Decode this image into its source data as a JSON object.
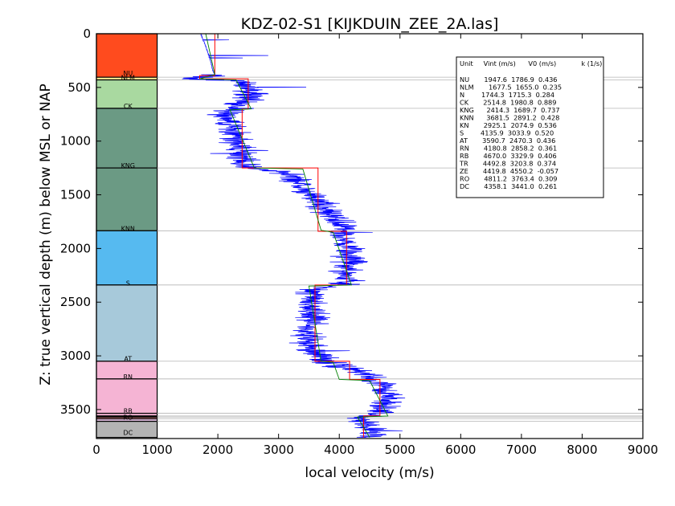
{
  "chart_data": {
    "type": "line",
    "title": "KDZ-02-S1 [KIJKDUIN_ZEE_2A.las]",
    "xlabel": "local velocity (m/s)",
    "ylabel": "Z: true vertical depth (m) below MSL or NAP",
    "xlim": [
      0,
      9000
    ],
    "ylim": [
      3770,
      0
    ],
    "xticks": [
      0,
      1000,
      2000,
      3000,
      4000,
      5000,
      6000,
      7000,
      8000,
      9000
    ],
    "yticks": [
      0,
      500,
      1000,
      1500,
      2000,
      2500,
      3000,
      3500
    ],
    "colors": {
      "log": "#0000ff",
      "interval": "#ff0000",
      "trend": "#008000",
      "boundary": "#b4b4b4",
      "frame": "#000000"
    },
    "units": [
      {
        "code": "NU",
        "top": 0,
        "bottom": 405,
        "color": "#ff4b1e"
      },
      {
        "code": "NLM",
        "top": 405,
        "bottom": 430,
        "color": "#fff59a"
      },
      {
        "code": "N",
        "top": 430,
        "bottom": 695,
        "color": "#a9d9a0"
      },
      {
        "code": "CK",
        "top": 695,
        "bottom": 1250,
        "color": "#6b9a84"
      },
      {
        "code": "KNG",
        "top": 1250,
        "bottom": 1835,
        "color": "#6b9a84"
      },
      {
        "code": "KNN",
        "top": 1835,
        "bottom": 2340,
        "color": "#56baf0"
      },
      {
        "code": "S",
        "top": 2340,
        "bottom": 3050,
        "color": "#a7c9da"
      },
      {
        "code": "AT",
        "top": 3050,
        "bottom": 3215,
        "color": "#f5b4d4"
      },
      {
        "code": "RN",
        "top": 3215,
        "bottom": 3535,
        "color": "#f5b4d4"
      },
      {
        "code": "RB",
        "top": 3535,
        "bottom": 3560,
        "color": "#f5b4d4"
      },
      {
        "code": "TR",
        "top": 3560,
        "bottom": 3570,
        "color": "#f5c48c"
      },
      {
        "code": "ZE",
        "top": 3570,
        "bottom": 3585,
        "color": "#ff9b9b"
      },
      {
        "code": "RO",
        "top": 3585,
        "bottom": 3610,
        "color": "#d0b0d0"
      },
      {
        "code": "DC",
        "top": 3610,
        "bottom": 3760,
        "color": "#b4b4b4"
      }
    ],
    "unit_labels": [
      {
        "code": "NU",
        "depth": 375
      },
      {
        "code": "NLM",
        "depth": 415
      },
      {
        "code": "CK",
        "depth": 680
      },
      {
        "code": "KNG",
        "depth": 1235
      },
      {
        "code": "KNN",
        "depth": 1820
      },
      {
        "code": "S",
        "depth": 2330
      },
      {
        "code": "AT",
        "depth": 3035
      },
      {
        "code": "RN",
        "depth": 3200
      },
      {
        "code": "RB",
        "depth": 3520
      },
      {
        "code": "RO",
        "depth": 3580
      },
      {
        "code": "DC",
        "depth": 3720
      }
    ],
    "legend": {
      "position": "top-right",
      "header": "Unit     Vint (m/s)      V0 (m/s)            k (1/s)",
      "rows": [
        "NU       1947.6  1786.9  0.436",
        "NLM       1677.5  1655.0  0.235",
        "N        1744.3  1715.3  0.284",
        "CK       2514.8  1980.8  0.889",
        "KNG      2414.3  1689.7  0.737",
        "KNN      3681.5  2891.2  0.428",
        "KN       2925.1  2074.9  0.536",
        "S        4135.9  3033.9  0.520",
        "AT       3590.7  2470.3  0.436",
        "RN       4180.8  2858.2  0.361",
        "RB       4670.0  3329.9  0.406",
        "TR       4492.8  3203.8  0.374",
        "ZE       4419.8  4550.2  -0.057",
        "RO       4811.2  3763.4  0.309",
        "DC       4358.1  3441.0  0.261"
      ]
    },
    "series": [
      {
        "values": [
          [
            1950,
            0
          ],
          [
            1950,
            390
          ],
          [
            1700,
            390
          ],
          [
            1700,
            420
          ],
          [
            2500,
            420
          ],
          [
            2500,
            700
          ],
          [
            2400,
            700
          ],
          [
            2400,
            1250
          ],
          [
            3650,
            1250
          ],
          [
            3650,
            1840
          ],
          [
            4120,
            1840
          ],
          [
            4120,
            2340
          ],
          [
            3600,
            2340
          ],
          [
            3600,
            3050
          ],
          [
            4170,
            3050
          ],
          [
            4170,
            3220
          ],
          [
            4670,
            3220
          ],
          [
            4670,
            3560
          ],
          [
            4400,
            3560
          ],
          [
            4400,
            3760
          ]
        ]
      },
      {
        "values": [
          [
            1800,
            0
          ],
          [
            1950,
            380
          ],
          [
            1700,
            420
          ],
          [
            2300,
            430
          ],
          [
            2550,
            700
          ],
          [
            2200,
            710
          ],
          [
            2600,
            1250
          ],
          [
            3400,
            1260
          ],
          [
            3700,
            1830
          ],
          [
            3900,
            1850
          ],
          [
            4200,
            2340
          ],
          [
            3500,
            2350
          ],
          [
            3700,
            3050
          ],
          [
            3900,
            3060
          ],
          [
            4000,
            3220
          ],
          [
            4500,
            3230
          ],
          [
            4800,
            3560
          ],
          [
            4300,
            3570
          ],
          [
            4500,
            3760
          ]
        ]
      },
      {
        "profile": [
          [
            0,
            1720
          ],
          [
            50,
            1750
          ],
          [
            100,
            1790
          ],
          [
            150,
            1820
          ],
          [
            200,
            1850
          ],
          [
            250,
            1880
          ],
          [
            300,
            1900
          ],
          [
            350,
            1920
          ],
          [
            380,
            1950
          ],
          [
            395,
            1840
          ],
          [
            405,
            1700
          ],
          [
            415,
            1450
          ],
          [
            425,
            1800
          ],
          [
            440,
            2380
          ],
          [
            480,
            2450
          ],
          [
            520,
            2500
          ],
          [
            560,
            2520
          ],
          [
            600,
            2480
          ],
          [
            650,
            2400
          ],
          [
            690,
            2300
          ],
          [
            720,
            2150
          ],
          [
            770,
            2100
          ],
          [
            820,
            2200
          ],
          [
            880,
            2250
          ],
          [
            940,
            2280
          ],
          [
            1000,
            2300
          ],
          [
            1060,
            2320
          ],
          [
            1120,
            2380
          ],
          [
            1180,
            2400
          ],
          [
            1240,
            2450
          ],
          [
            1280,
            3000
          ],
          [
            1320,
            3200
          ],
          [
            1380,
            3300
          ],
          [
            1440,
            3400
          ],
          [
            1500,
            3550
          ],
          [
            1560,
            3650
          ],
          [
            1620,
            3750
          ],
          [
            1680,
            3850
          ],
          [
            1740,
            3950
          ],
          [
            1800,
            4100
          ],
          [
            1840,
            4050
          ],
          [
            1880,
            4000
          ],
          [
            1950,
            4100
          ],
          [
            2020,
            4150
          ],
          [
            2100,
            4200
          ],
          [
            2160,
            4150
          ],
          [
            2220,
            4100
          ],
          [
            2280,
            4150
          ],
          [
            2330,
            4100
          ],
          [
            2360,
            3700
          ],
          [
            2420,
            3550
          ],
          [
            2500,
            3500
          ],
          [
            2580,
            3550
          ],
          [
            2660,
            3600
          ],
          [
            2740,
            3500
          ],
          [
            2820,
            3450
          ],
          [
            2900,
            3500
          ],
          [
            2980,
            3600
          ],
          [
            3040,
            3700
          ],
          [
            3080,
            3900
          ],
          [
            3130,
            4300
          ],
          [
            3180,
            4500
          ],
          [
            3220,
            4550
          ],
          [
            3280,
            4700
          ],
          [
            3340,
            4750
          ],
          [
            3400,
            4800
          ],
          [
            3460,
            4700
          ],
          [
            3520,
            4650
          ],
          [
            3550,
            4500
          ],
          [
            3580,
            4300
          ],
          [
            3620,
            4400
          ],
          [
            3680,
            4500
          ],
          [
            3740,
            4600
          ],
          [
            3760,
            4500
          ]
        ],
        "noise": 260
      }
    ]
  }
}
